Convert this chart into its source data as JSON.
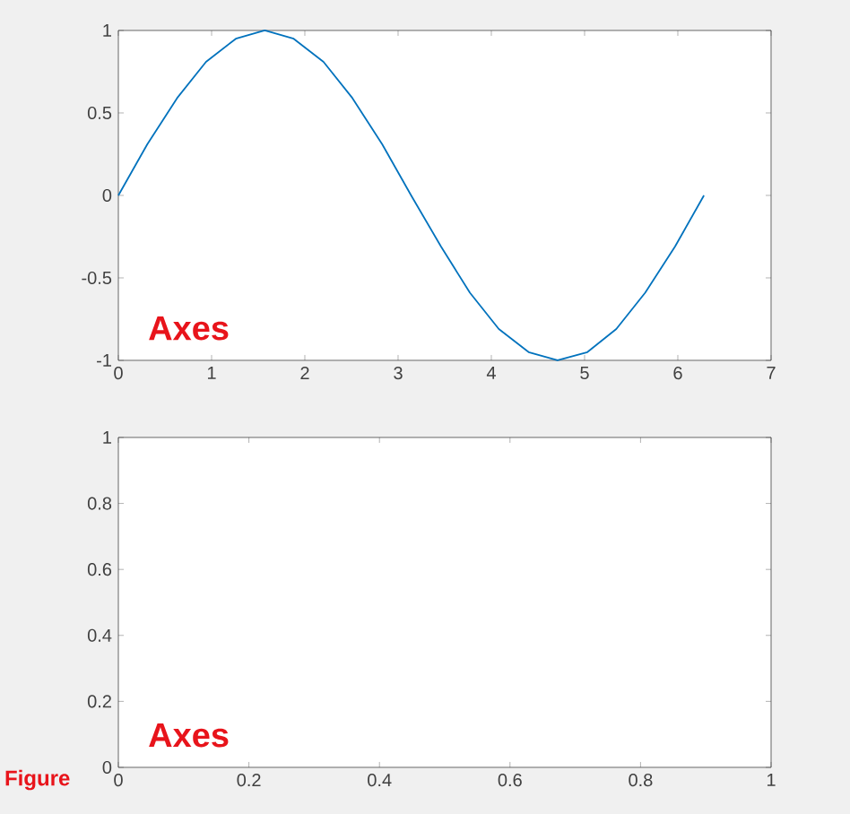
{
  "chart_data": [
    {
      "type": "line",
      "x": [
        0,
        0.31,
        0.63,
        0.94,
        1.26,
        1.57,
        1.88,
        2.2,
        2.51,
        2.83,
        3.14,
        3.46,
        3.77,
        4.08,
        4.4,
        4.71,
        5.03,
        5.34,
        5.65,
        5.97,
        6.28
      ],
      "series": [
        {
          "color": "#0072bd",
          "values": [
            0,
            0.31,
            0.59,
            0.81,
            0.95,
            1,
            0.95,
            0.81,
            0.59,
            0.31,
            0,
            -0.31,
            -0.59,
            -0.81,
            -0.95,
            -1,
            -0.95,
            -0.81,
            -0.59,
            -0.31,
            0
          ]
        }
      ],
      "xlim": [
        0,
        7
      ],
      "ylim": [
        -1,
        1
      ],
      "xticks": [
        0,
        1,
        2,
        3,
        4,
        5,
        6,
        7
      ],
      "yticks": [
        -1,
        -0.5,
        0,
        0.5,
        1
      ],
      "grid": false,
      "marker": "none",
      "line_style": "solid",
      "annotations": [
        "Axes"
      ]
    },
    {
      "type": "line",
      "xlim": [
        0,
        1
      ],
      "ylim": [
        0,
        1
      ],
      "xticks": [
        0,
        0.2,
        0.4,
        0.6,
        0.8,
        1
      ],
      "yticks": [
        0,
        0.2,
        0.4,
        0.6,
        0.8,
        1
      ],
      "grid": false,
      "annotations": [
        "Axes",
        "Figure"
      ]
    }
  ]
}
